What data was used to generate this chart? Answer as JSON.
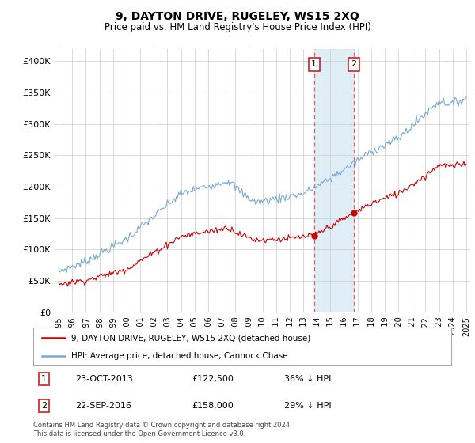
{
  "title": "9, DAYTON DRIVE, RUGELEY, WS15 2XQ",
  "subtitle": "Price paid vs. HM Land Registry's House Price Index (HPI)",
  "legend_label_red": "9, DAYTON DRIVE, RUGELEY, WS15 2XQ (detached house)",
  "legend_label_blue": "HPI: Average price, detached house, Cannock Chase",
  "footnote": "Contains HM Land Registry data © Crown copyright and database right 2024.\nThis data is licensed under the Open Government Licence v3.0.",
  "transaction1_date": "23-OCT-2013",
  "transaction1_price": "£122,500",
  "transaction1_pct": "36% ↓ HPI",
  "transaction2_date": "22-SEP-2016",
  "transaction2_price": "£158,000",
  "transaction2_pct": "29% ↓ HPI",
  "ylim": [
    0,
    420000
  ],
  "xlim_left": 1994.7,
  "xlim_right": 2025.3,
  "color_red": "#cc0000",
  "color_blue": "#7aaad0",
  "color_shading": "#daeaf5",
  "vline_color": "#cc0000",
  "background_color": "#ffffff",
  "grid_color": "#cccccc",
  "t1_x": 2013.8,
  "t1_y": 122500,
  "t2_x": 2016.72,
  "t2_y": 158000
}
